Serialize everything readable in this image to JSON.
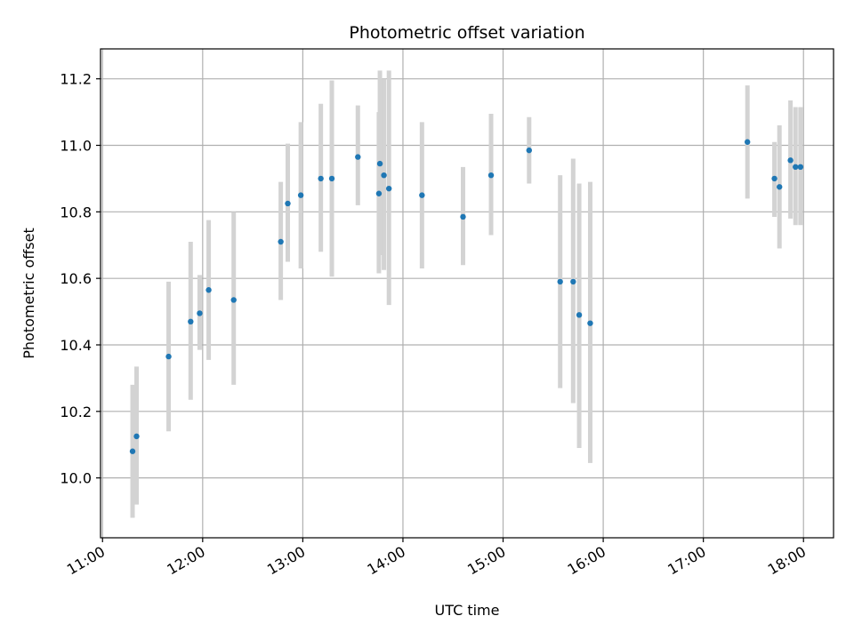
{
  "chart_data": {
    "type": "scatter",
    "title": "Photometric offset variation",
    "xlabel": "UTC time",
    "ylabel": "Photometric offset",
    "x_unit": "hours (UTC)",
    "xlim": [
      10.98,
      18.3
    ],
    "ylim": [
      9.82,
      11.29
    ],
    "x_ticks": [
      11,
      12,
      13,
      14,
      15,
      16,
      17,
      18
    ],
    "x_tick_labels": [
      "11:00",
      "12:00",
      "13:00",
      "14:00",
      "15:00",
      "16:00",
      "17:00",
      "18:00"
    ],
    "y_ticks": [
      10.0,
      10.2,
      10.4,
      10.6,
      10.8,
      11.0,
      11.2
    ],
    "y_tick_labels": [
      "10.0",
      "10.2",
      "10.4",
      "10.6",
      "10.8",
      "11.0",
      "11.2"
    ],
    "grid": true,
    "point_color": "#1f77b4",
    "errorbar_color": "#d3d3d3",
    "points": [
      {
        "time": "11:18",
        "x": 11.3,
        "y": 10.08,
        "ylo": 9.88,
        "yhi": 10.28
      },
      {
        "time": "11:20",
        "x": 11.34,
        "y": 10.125,
        "ylo": 9.92,
        "yhi": 10.335
      },
      {
        "time": "11:39",
        "x": 11.66,
        "y": 10.365,
        "ylo": 10.14,
        "yhi": 10.59
      },
      {
        "time": "11:53",
        "x": 11.88,
        "y": 10.47,
        "ylo": 10.235,
        "yhi": 10.71
      },
      {
        "time": "11:58",
        "x": 11.97,
        "y": 10.495,
        "ylo": 10.385,
        "yhi": 10.61
      },
      {
        "time": "12:04",
        "x": 12.06,
        "y": 10.565,
        "ylo": 10.355,
        "yhi": 10.775
      },
      {
        "time": "12:19",
        "x": 12.31,
        "y": 10.535,
        "ylo": 10.28,
        "yhi": 10.8
      },
      {
        "time": "12:47",
        "x": 12.78,
        "y": 10.71,
        "ylo": 10.535,
        "yhi": 10.89
      },
      {
        "time": "12:51",
        "x": 12.85,
        "y": 10.825,
        "ylo": 10.65,
        "yhi": 11.005
      },
      {
        "time": "12:59",
        "x": 12.98,
        "y": 10.85,
        "ylo": 10.63,
        "yhi": 11.07
      },
      {
        "time": "13:11",
        "x": 13.18,
        "y": 10.9,
        "ylo": 10.68,
        "yhi": 11.125
      },
      {
        "time": "13:17",
        "x": 13.29,
        "y": 10.9,
        "ylo": 10.605,
        "yhi": 11.195
      },
      {
        "time": "13:33",
        "x": 13.55,
        "y": 10.965,
        "ylo": 10.82,
        "yhi": 11.12
      },
      {
        "time": "13:45",
        "x": 13.76,
        "y": 10.855,
        "ylo": 10.615,
        "yhi": 11.1
      },
      {
        "time": "13:46",
        "x": 13.77,
        "y": 10.945,
        "ylo": 10.67,
        "yhi": 11.225
      },
      {
        "time": "13:49",
        "x": 13.81,
        "y": 10.91,
        "ylo": 10.625,
        "yhi": 11.2
      },
      {
        "time": "13:52",
        "x": 13.86,
        "y": 10.87,
        "ylo": 10.52,
        "yhi": 11.225
      },
      {
        "time": "14:12",
        "x": 14.19,
        "y": 10.85,
        "ylo": 10.63,
        "yhi": 11.07
      },
      {
        "time": "14:36",
        "x": 14.6,
        "y": 10.785,
        "ylo": 10.64,
        "yhi": 10.935
      },
      {
        "time": "14:53",
        "x": 14.88,
        "y": 10.91,
        "ylo": 10.73,
        "yhi": 11.095
      },
      {
        "time": "15:16",
        "x": 15.26,
        "y": 10.985,
        "ylo": 10.885,
        "yhi": 11.085
      },
      {
        "time": "15:34",
        "x": 15.57,
        "y": 10.59,
        "ylo": 10.27,
        "yhi": 10.91
      },
      {
        "time": "15:42",
        "x": 15.7,
        "y": 10.59,
        "ylo": 10.225,
        "yhi": 10.96
      },
      {
        "time": "15:45",
        "x": 15.76,
        "y": 10.49,
        "ylo": 10.09,
        "yhi": 10.885
      },
      {
        "time": "15:52",
        "x": 15.87,
        "y": 10.465,
        "ylo": 10.045,
        "yhi": 10.89
      },
      {
        "time": "17:26",
        "x": 17.44,
        "y": 11.01,
        "ylo": 10.84,
        "yhi": 11.18
      },
      {
        "time": "17:42",
        "x": 17.71,
        "y": 10.9,
        "ylo": 10.785,
        "yhi": 11.01
      },
      {
        "time": "17:46",
        "x": 17.76,
        "y": 10.875,
        "ylo": 10.69,
        "yhi": 11.06
      },
      {
        "time": "17:52",
        "x": 17.87,
        "y": 10.955,
        "ylo": 10.78,
        "yhi": 11.135
      },
      {
        "time": "17:55",
        "x": 17.92,
        "y": 10.935,
        "ylo": 10.76,
        "yhi": 11.115
      },
      {
        "time": "17:58",
        "x": 17.97,
        "y": 10.935,
        "ylo": 10.76,
        "yhi": 11.115
      }
    ]
  }
}
